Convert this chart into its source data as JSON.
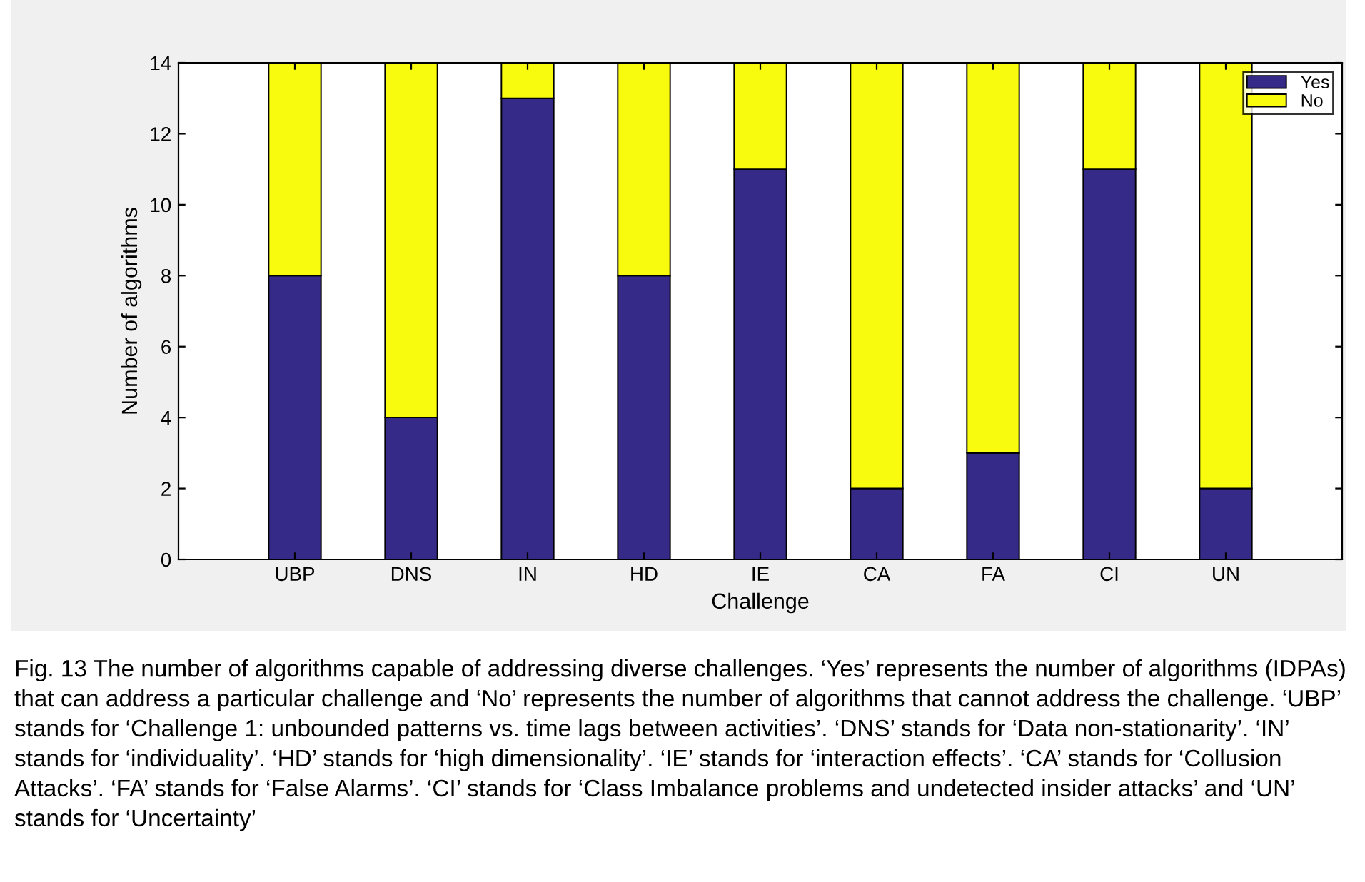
{
  "chart_data": {
    "type": "bar",
    "stacked": true,
    "xlabel": "Challenge",
    "ylabel": "Number of algorithms",
    "categories": [
      "UBP",
      "DNS",
      "IN",
      "HD",
      "IE",
      "CA",
      "FA",
      "CI",
      "UN"
    ],
    "series": [
      {
        "name": "Yes",
        "color": "#352a87",
        "values": [
          8,
          4,
          13,
          8,
          11,
          2,
          3,
          11,
          2
        ]
      },
      {
        "name": "No",
        "color": "#f9fb0e",
        "values": [
          6,
          10,
          1,
          6,
          3,
          12,
          11,
          3,
          12
        ]
      }
    ],
    "ylim": [
      0,
      14
    ],
    "yticks": [
      0,
      2,
      4,
      6,
      8,
      10,
      12,
      14
    ],
    "grid": false,
    "legend": "top right",
    "annotations": [
      "Fig. 13 The number of algorithms capable of addressing diverse challenges. ‘Yes’ represents the number of algorithms (IDPAs) that can address a particular challenge and ‘No’ represents the number of algorithms that cannot address the challenge. ‘UBP’ stands for ‘Challenge 1: unbounded patterns vs. time lags between activities’. ‘DNS’ stands for ‘Data non-stationarity’. ‘IN’ stands for ‘individuality’. ‘HD’ stands for ‘high dimensionality’. ‘IE’ stands for ‘interaction effects’. ‘CA’ stands for ‘Collusion Attacks’. ‘FA’ stands for ‘False Alarms’. ‘CI’ stands for ‘Class Imbalance problems and undetected insider attacks’ and ‘UN’ stands for ‘Uncertainty’"
    ]
  }
}
